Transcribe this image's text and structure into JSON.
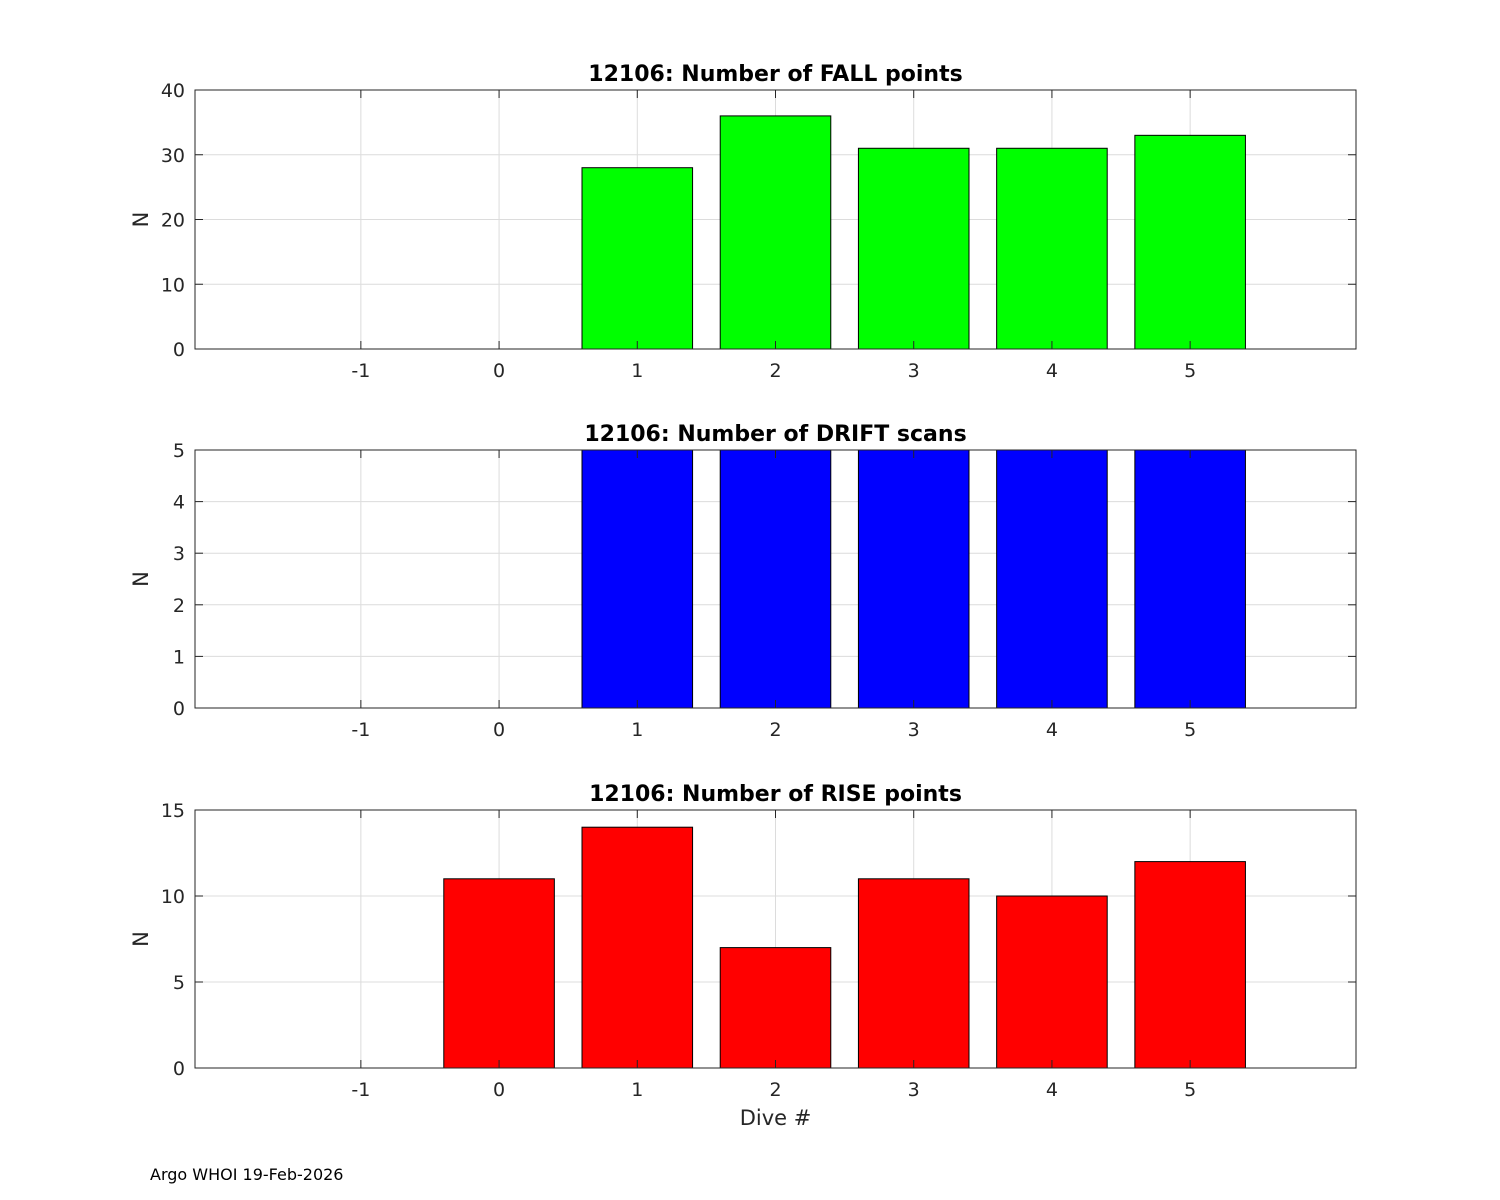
{
  "footer": "Argo WHOI 19-Feb-2026",
  "chart_data": [
    {
      "type": "bar",
      "title": "12106: Number of FALL points",
      "ylabel": "N",
      "xlabel": "",
      "x": [
        1,
        2,
        3,
        4,
        5
      ],
      "values": [
        28,
        36,
        31,
        31,
        33
      ],
      "color": "#00ff00",
      "xlim": [
        -2.2,
        6.2
      ],
      "ylim": [
        0,
        40
      ],
      "xticks": [
        -1,
        0,
        1,
        2,
        3,
        4,
        5
      ],
      "yticks": [
        0,
        10,
        20,
        30,
        40
      ],
      "grid": true
    },
    {
      "type": "bar",
      "title": "12106: Number of DRIFT scans",
      "ylabel": "N",
      "xlabel": "",
      "x": [
        1,
        2,
        3,
        4,
        5
      ],
      "values": [
        5,
        5,
        5,
        5,
        5
      ],
      "color": "#0000ff",
      "xlim": [
        -2.2,
        6.2
      ],
      "ylim": [
        0,
        5
      ],
      "xticks": [
        -1,
        0,
        1,
        2,
        3,
        4,
        5
      ],
      "yticks": [
        0,
        1,
        2,
        3,
        4,
        5
      ],
      "grid": true
    },
    {
      "type": "bar",
      "title": "12106: Number of RISE points",
      "ylabel": "N",
      "xlabel": "Dive #",
      "x": [
        0,
        1,
        2,
        3,
        4,
        5
      ],
      "values": [
        11,
        14,
        7,
        11,
        10,
        12
      ],
      "color": "#ff0000",
      "xlim": [
        -2.2,
        6.2
      ],
      "ylim": [
        0,
        15
      ],
      "xticks": [
        -1,
        0,
        1,
        2,
        3,
        4,
        5
      ],
      "yticks": [
        0,
        5,
        10,
        15
      ],
      "grid": true
    }
  ]
}
